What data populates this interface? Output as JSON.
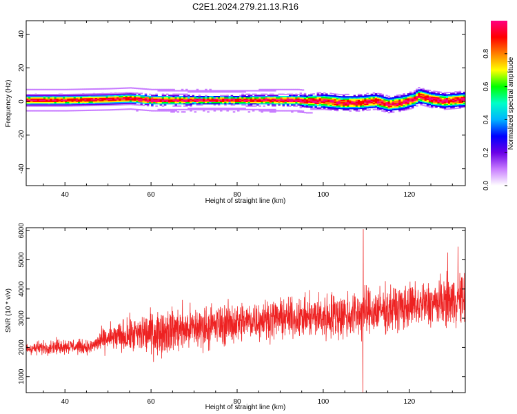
{
  "title": "C2E1.2024.279.21.13.R16",
  "chart_data": [
    {
      "type": "heatmap",
      "xlabel": "Height of straight line (km)",
      "ylabel": "Frequency (Hz)",
      "xlim": [
        31,
        133
      ],
      "ylim": [
        -50,
        48
      ],
      "xticks": [
        40,
        60,
        80,
        100,
        120
      ],
      "yticks": [
        40,
        20,
        0,
        -20,
        -40
      ],
      "grid": false,
      "colorbar": {
        "label": "Normalized spectral amplitude",
        "range": [
          0,
          1
        ],
        "ticks": [
          "0.0",
          "0.2",
          "0.4",
          "0.6",
          "0.8"
        ],
        "colors": [
          "#ffffff",
          "#c87dff",
          "#6a00e6",
          "#0000ff",
          "#00b4ff",
          "#00ffc8",
          "#00ff00",
          "#ffff00",
          "#ff8000",
          "#ff0000",
          "#ff0080"
        ]
      },
      "ridge": {
        "height_km": [
          31,
          40,
          50,
          55,
          60,
          70,
          80,
          90,
          94,
          96,
          100,
          104,
          108,
          112,
          115,
          118,
          121,
          122,
          125,
          128,
          133
        ],
        "freq_hz": [
          0.5,
          0.5,
          1.0,
          1.5,
          0.5,
          0.5,
          0.5,
          0.5,
          0.5,
          0,
          0,
          -1,
          -1,
          0,
          -2,
          -1,
          1,
          3,
          1,
          0,
          1
        ],
        "band_width_hz": [
          3,
          3,
          3,
          3,
          3,
          2.5,
          2.5,
          3,
          3,
          3.5,
          4,
          4,
          4,
          4,
          4,
          4,
          4,
          4,
          4,
          4,
          4
        ]
      }
    },
    {
      "type": "line",
      "xlabel": "Height of straight line (km)",
      "ylabel": "SNR (10 * v/v)",
      "xlim": [
        31,
        133
      ],
      "ylim": [
        450,
        6100
      ],
      "xticks": [
        40,
        60,
        80,
        100,
        120
      ],
      "yticks": [
        6000,
        5000,
        4000,
        3000,
        2000,
        1000
      ],
      "grid": false,
      "series": [
        {
          "color": "#ee2222",
          "trend_x": [
            31,
            40,
            46,
            48,
            50,
            55,
            60,
            65,
            70,
            75,
            80,
            85,
            90,
            94,
            98,
            100,
            105,
            110,
            115,
            120,
            125,
            130,
            133
          ],
          "trend_y": [
            1950,
            2050,
            2000,
            2200,
            2300,
            2400,
            2500,
            2600,
            2650,
            2750,
            2850,
            2950,
            3000,
            3000,
            3050,
            3050,
            3100,
            3200,
            3300,
            3400,
            3500,
            3600,
            3650
          ],
          "noise_amplitude": [
            180,
            220,
            200,
            300,
            380,
            500,
            650,
            650,
            650,
            600,
            600,
            550,
            550,
            550,
            600,
            700,
            700,
            700,
            650,
            650,
            650,
            700,
            750
          ],
          "spikes": [
            {
              "x": 109.3,
              "y": 6050
            },
            {
              "x": 109.2,
              "y": 450
            },
            {
              "x": 131.3,
              "y": 5450
            },
            {
              "x": 128.9,
              "y": 5250
            }
          ]
        }
      ]
    }
  ]
}
